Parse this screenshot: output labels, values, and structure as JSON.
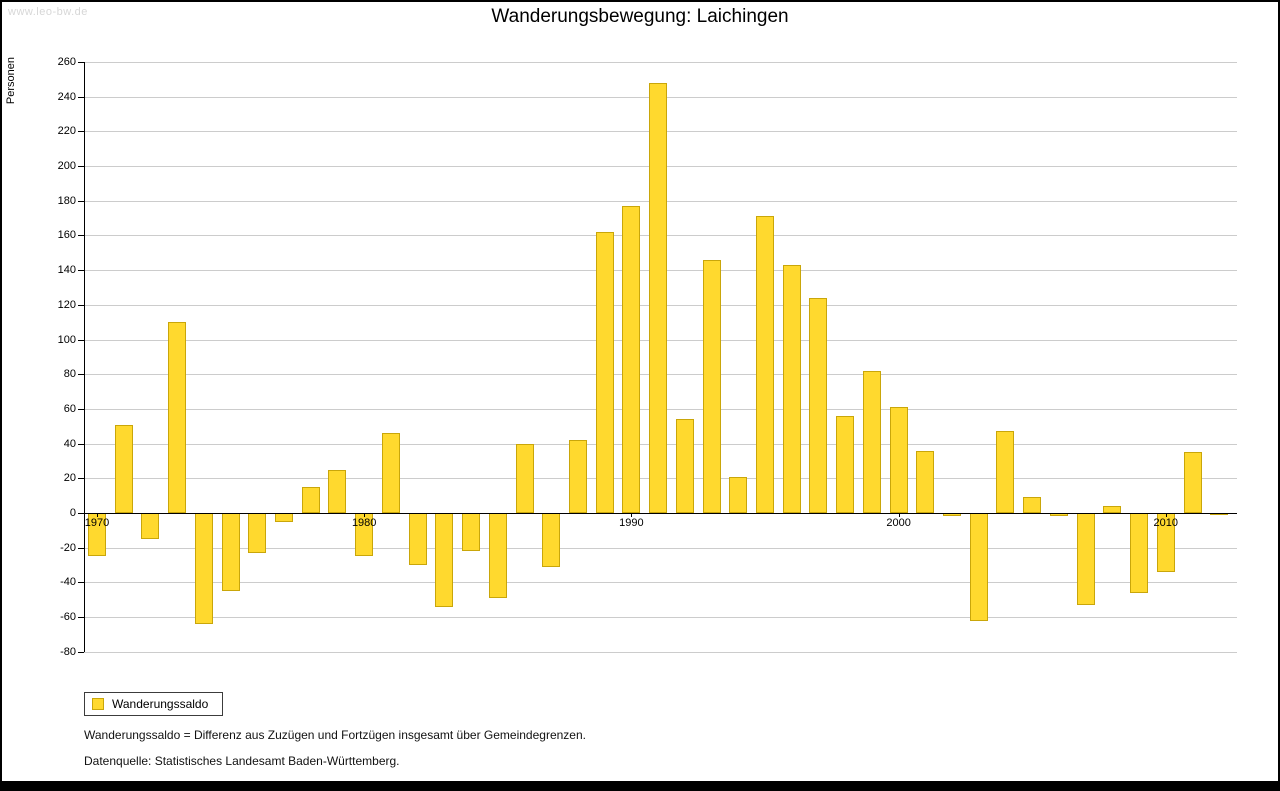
{
  "watermark": "www.leo-bw.de",
  "title": "Wanderungsbewegung: Laichingen",
  "y_axis_label": "Personen",
  "legend": {
    "label": "Wanderungssaldo"
  },
  "footnotes": {
    "line1": "Wanderungssaldo = Differenz aus Zuzügen und Fortzügen insgesamt über Gemeindegrenzen.",
    "line2": "Datenquelle: Statistisches Landesamt Baden-Württemberg."
  },
  "colors": {
    "bar_fill": "#FFD92E",
    "bar_border": "#C9A60A",
    "grid": "#cccccc",
    "axis": "#000000",
    "watermark": "#d7d7d7"
  },
  "chart_data": {
    "type": "bar",
    "title": "Wanderungsbewegung: Laichingen",
    "ylabel": "Personen",
    "series_name": "Wanderungssaldo",
    "years": [
      1970,
      1971,
      1972,
      1973,
      1974,
      1975,
      1976,
      1977,
      1978,
      1979,
      1980,
      1981,
      1982,
      1983,
      1984,
      1985,
      1986,
      1987,
      1988,
      1989,
      1990,
      1991,
      1992,
      1993,
      1994,
      1995,
      1996,
      1997,
      1998,
      1999,
      2000,
      2001,
      2002,
      2003,
      2004,
      2005,
      2006,
      2007,
      2008,
      2009,
      2010,
      2011,
      2012
    ],
    "values": [
      -25,
      51,
      -15,
      110,
      -64,
      -45,
      -23,
      -5,
      15,
      25,
      -25,
      46,
      -30,
      -54,
      -22,
      -49,
      40,
      -31,
      42,
      162,
      177,
      248,
      54,
      146,
      21,
      171,
      143,
      124,
      56,
      82,
      61,
      36,
      -2,
      -62,
      47,
      9,
      -2,
      -53,
      4,
      -46,
      -34,
      35,
      -1
    ],
    "ylim": [
      -80,
      260
    ],
    "ytick_step": 20,
    "xticks": [
      1970,
      1980,
      1990,
      2000,
      2010
    ],
    "grid": true,
    "legend_position": "bottom-left"
  }
}
